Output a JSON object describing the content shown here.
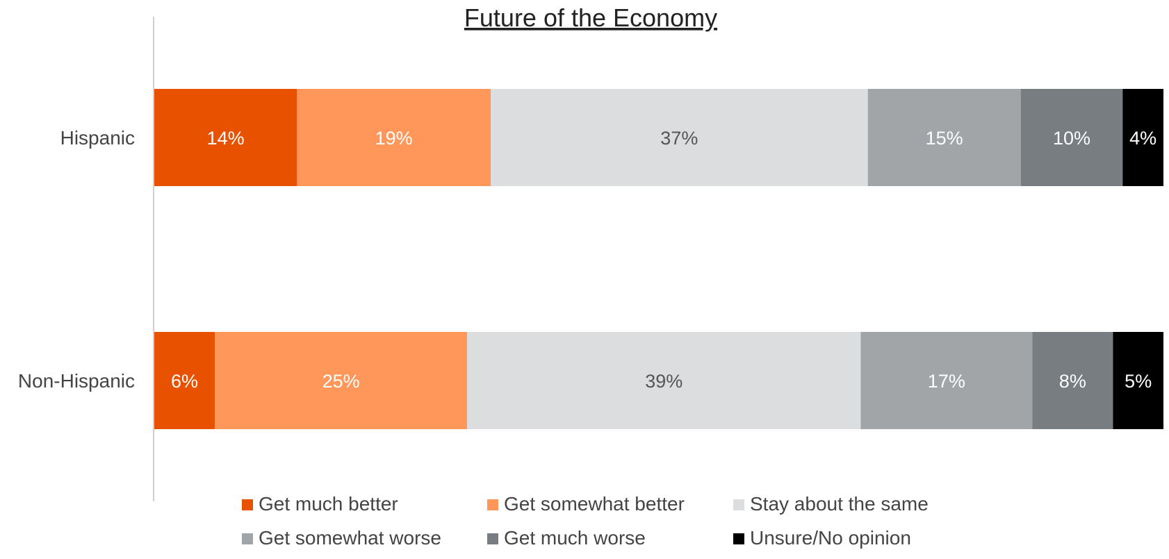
{
  "chart_data": {
    "type": "bar",
    "orientation": "horizontal",
    "stacked": true,
    "title": "Future of the Economy",
    "categories": [
      "Hispanic",
      "Non-Hispanic"
    ],
    "series": [
      {
        "name": "Get much better",
        "color": "#E85100",
        "label_color": "#FFFFFF",
        "values": [
          14,
          6
        ],
        "labels": [
          "14%",
          "6%"
        ]
      },
      {
        "name": "Get somewhat better",
        "color": "#FF965A",
        "label_color": "#FFFFFF",
        "values": [
          19,
          25
        ],
        "labels": [
          "19%",
          "25%"
        ]
      },
      {
        "name": "Stay about the same",
        "color": "#DCDDDE",
        "label_color": "#555555",
        "values": [
          37,
          39
        ],
        "labels": [
          "37%",
          "39%"
        ]
      },
      {
        "name": "Get somewhat worse",
        "color": "#A2A5A8",
        "label_color": "#FFFFFF",
        "values": [
          15,
          17
        ],
        "labels": [
          "15%",
          "17%"
        ]
      },
      {
        "name": "Get much worse",
        "color": "#787D81",
        "label_color": "#FFFFFF",
        "values": [
          10,
          8
        ],
        "labels": [
          "10%",
          "8%"
        ]
      },
      {
        "name": "Unsure/No opinion",
        "color": "#000000",
        "label_color": "#FFFFFF",
        "values": [
          4,
          5
        ],
        "labels": [
          "4%",
          "5%"
        ]
      }
    ],
    "legend_position": "bottom",
    "grid": false
  }
}
